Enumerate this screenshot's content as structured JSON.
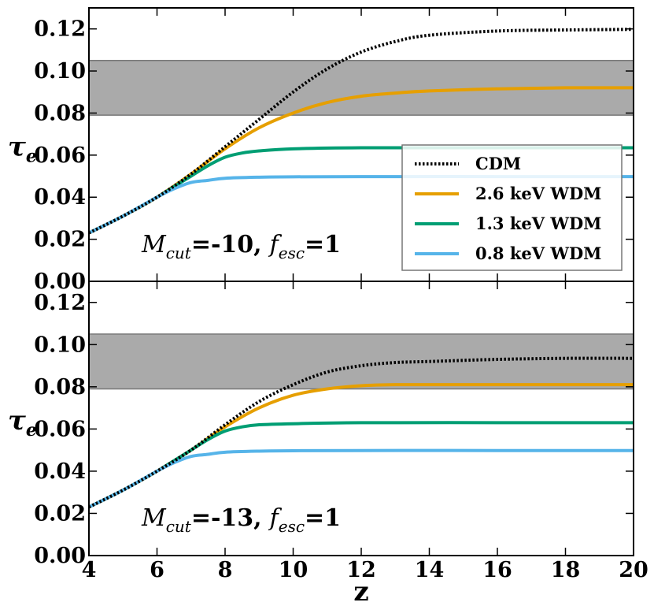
{
  "chart_data": [
    {
      "type": "line",
      "panel": "top",
      "annotation": {
        "m_symbol": "M",
        "m_sub": "cut",
        "m_value": "=-10,",
        "f_symbol": "f",
        "f_sub": "esc",
        "f_value": "=1"
      },
      "ylabel": {
        "symbol": "τ",
        "sub": "e"
      },
      "xlabel": "",
      "xlim": [
        4,
        20
      ],
      "ylim": [
        0,
        0.13
      ],
      "xticks": [
        "4",
        "6",
        "8",
        "10",
        "12",
        "14",
        "16",
        "18",
        "20"
      ],
      "yticks": [
        "0.00",
        "0.02",
        "0.04",
        "0.06",
        "0.08",
        "0.10",
        "0.12"
      ],
      "band": {
        "ymin": 0.079,
        "ymax": 0.105,
        "color": "#aaaaaa"
      },
      "legend": {
        "location": "center-right",
        "entries": [
          {
            "label": "CDM",
            "style": "dotted",
            "color": "#000000"
          },
          {
            "label": "2.6 keV WDM",
            "style": "solid",
            "color": "#E69F00"
          },
          {
            "label": "1.3 keV WDM",
            "style": "solid",
            "color": "#009E73"
          },
          {
            "label": "0.8 keV WDM",
            "style": "solid",
            "color": "#56B4E9"
          }
        ]
      },
      "series": [
        {
          "name": "CDM",
          "style": "dotted",
          "color": "#000000",
          "x": [
            4,
            5,
            6,
            7,
            8,
            9,
            10,
            11,
            12,
            13,
            14,
            16,
            18,
            20
          ],
          "y": [
            0.023,
            0.031,
            0.04,
            0.051,
            0.064,
            0.077,
            0.09,
            0.101,
            0.109,
            0.114,
            0.117,
            0.119,
            0.1195,
            0.1198
          ]
        },
        {
          "name": "2.6 keV WDM",
          "style": "solid",
          "color": "#E69F00",
          "x": [
            4,
            5,
            6,
            7,
            8,
            9,
            10,
            11,
            12,
            13,
            14,
            16,
            18,
            20
          ],
          "y": [
            0.023,
            0.031,
            0.04,
            0.051,
            0.063,
            0.073,
            0.08,
            0.085,
            0.088,
            0.0895,
            0.0905,
            0.0915,
            0.092,
            0.092
          ]
        },
        {
          "name": "1.3 keV WDM",
          "style": "solid",
          "color": "#009E73",
          "x": [
            4,
            5,
            6,
            6.5,
            7,
            7.5,
            8,
            8.5,
            9,
            10,
            12,
            16,
            20
          ],
          "y": [
            0.023,
            0.031,
            0.04,
            0.045,
            0.05,
            0.055,
            0.059,
            0.061,
            0.062,
            0.063,
            0.0635,
            0.0635,
            0.0635
          ]
        },
        {
          "name": "0.8 keV WDM",
          "style": "solid",
          "color": "#56B4E9",
          "x": [
            4,
            5,
            6,
            6.5,
            7,
            7.5,
            8,
            9,
            10,
            12,
            16,
            20
          ],
          "y": [
            0.023,
            0.031,
            0.04,
            0.044,
            0.047,
            0.048,
            0.049,
            0.0495,
            0.0497,
            0.0498,
            0.0498,
            0.0498
          ]
        }
      ]
    },
    {
      "type": "line",
      "panel": "bottom",
      "annotation": {
        "m_symbol": "M",
        "m_sub": "cut",
        "m_value": "=-13,",
        "f_symbol": "f",
        "f_sub": "esc",
        "f_value": "=1"
      },
      "ylabel": {
        "symbol": "τ",
        "sub": "e"
      },
      "xlabel": "z",
      "xlim": [
        4,
        20
      ],
      "ylim": [
        0,
        0.13
      ],
      "xticks": [
        "4",
        "6",
        "8",
        "10",
        "12",
        "14",
        "16",
        "18",
        "20"
      ],
      "yticks": [
        "0.00",
        "0.02",
        "0.04",
        "0.06",
        "0.08",
        "0.10",
        "0.12"
      ],
      "band": {
        "ymin": 0.079,
        "ymax": 0.105,
        "color": "#aaaaaa"
      },
      "series": [
        {
          "name": "CDM",
          "style": "dotted",
          "color": "#000000",
          "x": [
            4,
            5,
            6,
            7,
            8,
            9,
            10,
            11,
            12,
            13,
            14,
            16,
            18,
            20
          ],
          "y": [
            0.023,
            0.031,
            0.04,
            0.05,
            0.062,
            0.073,
            0.081,
            0.087,
            0.09,
            0.0915,
            0.092,
            0.093,
            0.0935,
            0.0935
          ]
        },
        {
          "name": "2.6 keV WDM",
          "style": "solid",
          "color": "#E69F00",
          "x": [
            4,
            5,
            6,
            7,
            8,
            9,
            10,
            11,
            12,
            13,
            14,
            16,
            20
          ],
          "y": [
            0.023,
            0.031,
            0.04,
            0.05,
            0.061,
            0.07,
            0.076,
            0.079,
            0.0805,
            0.081,
            0.081,
            0.081,
            0.081
          ]
        },
        {
          "name": "1.3 keV WDM",
          "style": "solid",
          "color": "#009E73",
          "x": [
            4,
            5,
            6,
            6.5,
            7,
            7.5,
            8,
            8.5,
            9,
            10,
            12,
            16,
            20
          ],
          "y": [
            0.023,
            0.031,
            0.04,
            0.045,
            0.05,
            0.055,
            0.059,
            0.061,
            0.062,
            0.0625,
            0.063,
            0.063,
            0.063
          ]
        },
        {
          "name": "0.8 keV WDM",
          "style": "solid",
          "color": "#56B4E9",
          "x": [
            4,
            5,
            6,
            6.5,
            7,
            7.5,
            8,
            9,
            10,
            12,
            16,
            20
          ],
          "y": [
            0.023,
            0.031,
            0.04,
            0.044,
            0.047,
            0.048,
            0.049,
            0.0495,
            0.0497,
            0.0498,
            0.0498,
            0.0498
          ]
        }
      ]
    }
  ]
}
